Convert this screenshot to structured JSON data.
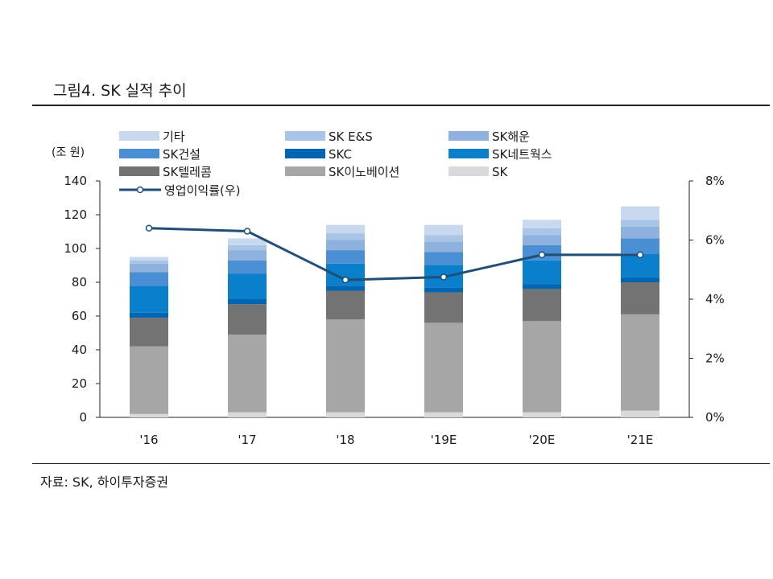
{
  "figure_title": "그림4.  SK 실적 추이",
  "source_note": "자료: SK,  하이투자증권",
  "chart_data": {
    "type": "bar",
    "stacked": true,
    "categories": [
      "'16",
      "'17",
      "'18",
      "'19E",
      "'20E",
      "'21E"
    ],
    "y_unit_label": "(조 원)",
    "ylim": [
      0,
      140
    ],
    "y_ticks": [
      0,
      20,
      40,
      60,
      80,
      100,
      120,
      140
    ],
    "y2lim": [
      0,
      8
    ],
    "y2_ticks": [
      "0%",
      "2%",
      "4%",
      "6%",
      "8%"
    ],
    "legend_position": "top",
    "series": [
      {
        "name": "SK",
        "color": "#d9d9d9",
        "values": [
          2,
          3,
          3,
          3,
          3,
          4
        ]
      },
      {
        "name": "SK이노베이션",
        "color": "#a6a6a6",
        "values": [
          40,
          46,
          55,
          53,
          54,
          57
        ]
      },
      {
        "name": "SK텔레콤",
        "color": "#737373",
        "values": [
          17,
          18,
          17,
          18,
          19,
          19
        ]
      },
      {
        "name": "SKC",
        "color": "#0066b3",
        "values": [
          3,
          3,
          3,
          3,
          3,
          3
        ]
      },
      {
        "name": "SK네트웍스",
        "color": "#0a7fcc",
        "values": [
          16,
          15,
          13,
          13,
          14,
          14
        ]
      },
      {
        "name": "SK건설",
        "color": "#4a8fd4",
        "values": [
          8,
          8,
          8,
          8,
          9,
          9
        ]
      },
      {
        "name": "SK해운",
        "color": "#8eb2dd",
        "values": [
          5,
          6,
          6,
          6,
          6,
          7
        ]
      },
      {
        "name": "SK E&S",
        "color": "#a8c4e6",
        "values": [
          2,
          3,
          4,
          4,
          4,
          4
        ]
      },
      {
        "name": "기타",
        "color": "#c8d9ef",
        "values": [
          2,
          4,
          5,
          6,
          5,
          8
        ]
      }
    ],
    "legend_order": [
      "기타",
      "SK E&S",
      "SK해운",
      "SK건설",
      "SKC",
      "SK네트웍스",
      "SK텔레콤",
      "SK이노베이션",
      "SK"
    ],
    "line_series": {
      "name": "영업이익률(우)",
      "color": "#1f4e79",
      "axis": "right",
      "values": [
        6.4,
        6.3,
        4.65,
        4.75,
        5.5,
        5.5
      ]
    }
  }
}
